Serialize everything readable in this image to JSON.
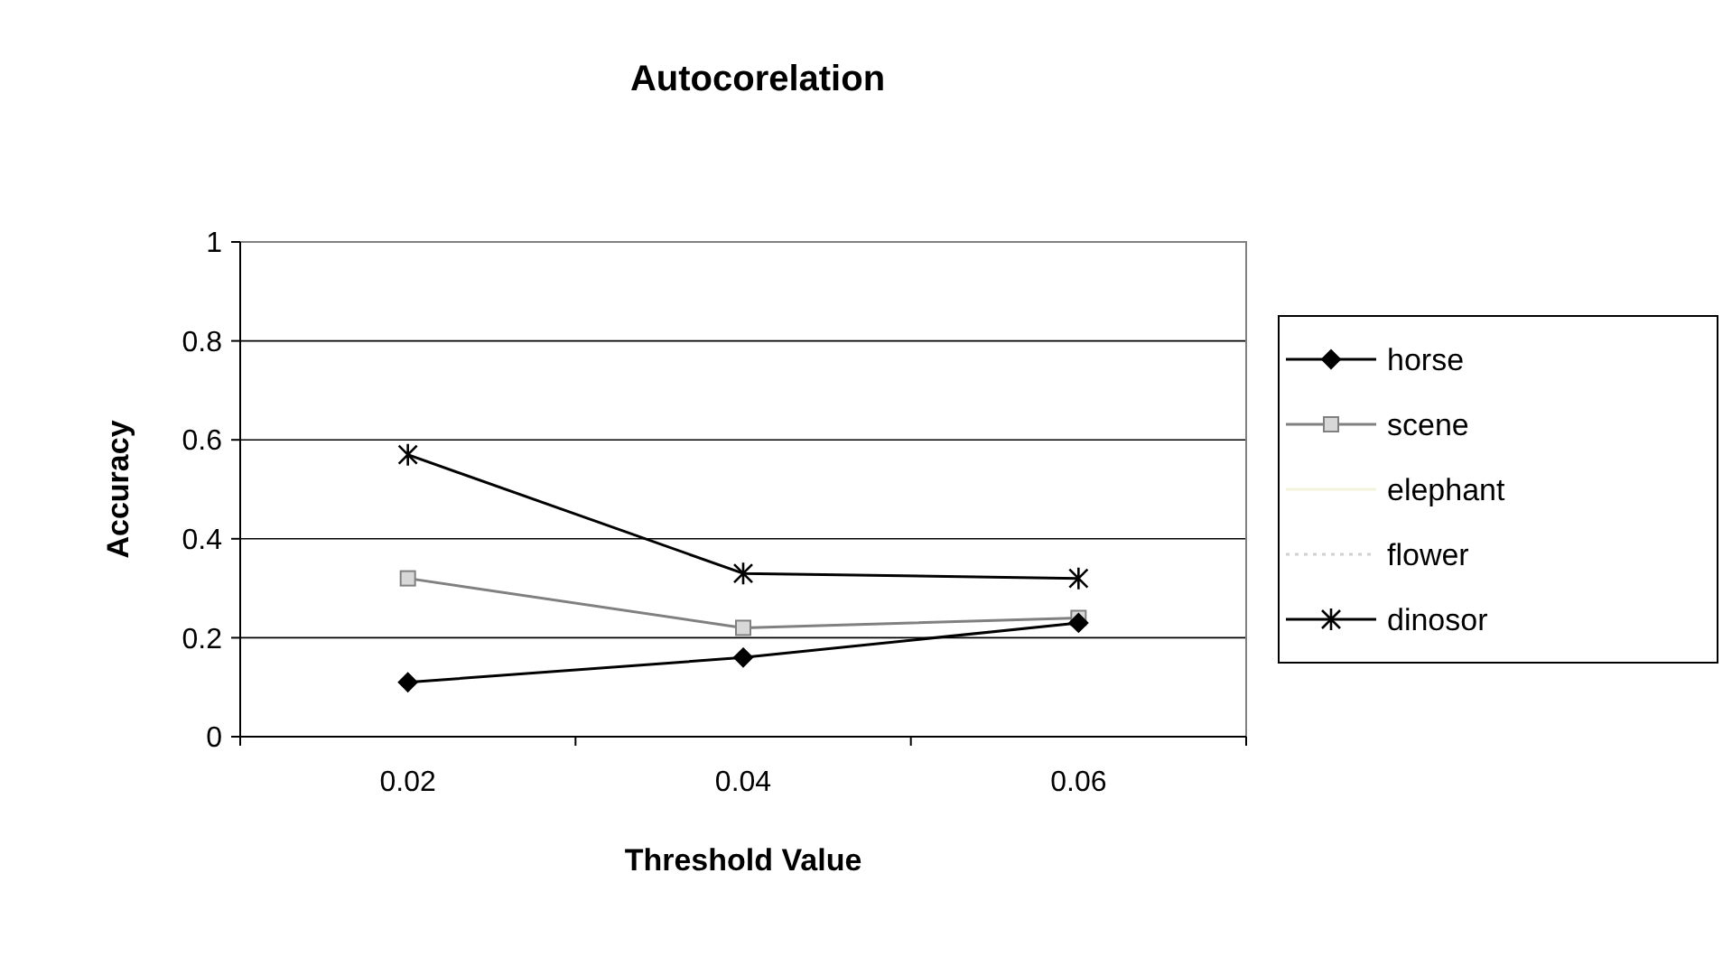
{
  "chart_data": {
    "type": "line",
    "title": "Autocorelation",
    "xlabel": "Threshold Value",
    "ylabel": "Accuracy",
    "categories": [
      "0.02",
      "0.04",
      "0.06"
    ],
    "ylim": [
      0,
      1
    ],
    "yticks": [
      0,
      0.2,
      0.4,
      0.6,
      0.8,
      1
    ],
    "grid": "y",
    "legend": "right",
    "series": [
      {
        "name": "horse",
        "color": "#000000",
        "marker": "diamond",
        "values": [
          0.11,
          0.16,
          0.23
        ]
      },
      {
        "name": "scene",
        "color": "#808080",
        "marker": "square",
        "values": [
          0.32,
          0.22,
          0.24
        ]
      },
      {
        "name": "elephant",
        "color": "#f4f4dc",
        "marker": "none",
        "values": [
          null,
          null,
          null
        ]
      },
      {
        "name": "flower",
        "color": "#d0d0d0",
        "marker": "none",
        "line_style": "dotted",
        "values": [
          null,
          null,
          null
        ]
      },
      {
        "name": "dinosor",
        "color": "#000000",
        "marker": "cross",
        "values": [
          0.57,
          0.33,
          0.32
        ]
      }
    ]
  }
}
